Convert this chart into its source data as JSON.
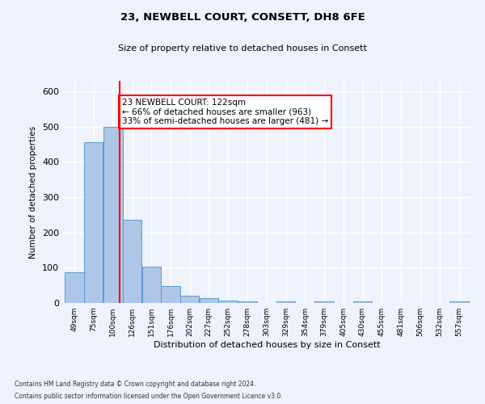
{
  "title1": "23, NEWBELL COURT, CONSETT, DH8 6FE",
  "title2": "Size of property relative to detached houses in Consett",
  "xlabel": "Distribution of detached houses by size in Consett",
  "ylabel": "Number of detached properties",
  "bar_color": "#aec6e8",
  "bar_edge_color": "#5b9bd5",
  "bin_edges": [
    49,
    75,
    100,
    126,
    151,
    176,
    202,
    227,
    252,
    278,
    303,
    329,
    354,
    379,
    405,
    430,
    455,
    481,
    506,
    532,
    557,
    583
  ],
  "bar_heights": [
    88,
    457,
    500,
    235,
    103,
    47,
    20,
    13,
    8,
    5,
    0,
    5,
    0,
    5,
    0,
    5,
    0,
    0,
    0,
    0,
    5
  ],
  "x_tick_labels": [
    "49sqm",
    "75sqm",
    "100sqm",
    "126sqm",
    "151sqm",
    "176sqm",
    "202sqm",
    "227sqm",
    "252sqm",
    "278sqm",
    "303sqm",
    "329sqm",
    "354sqm",
    "379sqm",
    "405sqm",
    "430sqm",
    "455sqm",
    "481sqm",
    "506sqm",
    "532sqm",
    "557sqm"
  ],
  "red_line_x": 122,
  "annotation_text": "23 NEWBELL COURT: 122sqm\n← 66% of detached houses are smaller (963)\n33% of semi-detached houses are larger (481) →",
  "annotation_box_color": "white",
  "annotation_box_edge_color": "red",
  "footer1": "Contains HM Land Registry data © Crown copyright and database right 2024.",
  "footer2": "Contains public sector information licensed under the Open Government Licence v3.0.",
  "ylim": [
    0,
    630
  ],
  "background_color": "#eef2fb",
  "grid_color": "white"
}
